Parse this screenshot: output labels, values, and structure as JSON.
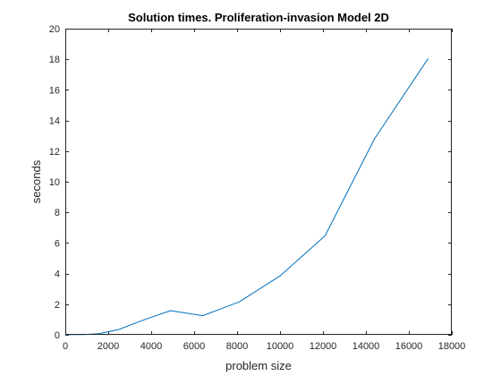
{
  "chart_data": {
    "type": "line",
    "title": "Solution times. Proliferation-invasion Model 2D",
    "xlabel": "problem size",
    "ylabel": "seconds",
    "xlim": [
      0,
      18000
    ],
    "ylim": [
      0,
      20
    ],
    "xticks": [
      0,
      2000,
      4000,
      6000,
      8000,
      10000,
      12000,
      14000,
      16000,
      18000
    ],
    "yticks": [
      0,
      2,
      4,
      6,
      8,
      10,
      12,
      14,
      16,
      18,
      20
    ],
    "grid": false,
    "line_color": "#0072BD",
    "series": [
      {
        "x": [
          0,
          400,
          900,
          1600,
          2500,
          3600,
          4900,
          6400,
          8100,
          10000,
          12100,
          14400,
          16900
        ],
        "y": [
          0.0,
          0.01,
          0.02,
          0.08,
          0.35,
          0.95,
          1.58,
          1.25,
          2.15,
          3.85,
          6.48,
          12.8,
          18.05
        ]
      }
    ]
  }
}
